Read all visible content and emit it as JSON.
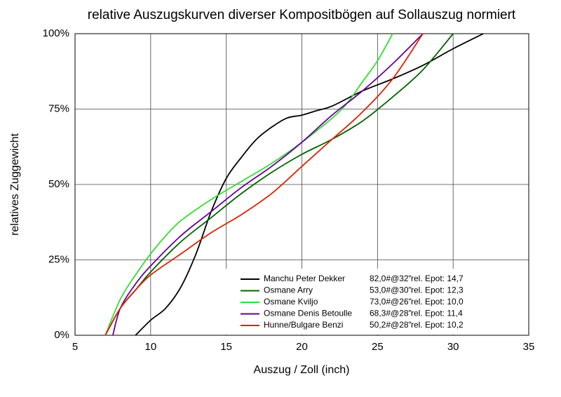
{
  "chart_data": {
    "type": "line",
    "title": "relative Auszugskurven diverser Kompositbögen auf Sollauszug normiert",
    "x_label": "Auszug / Zoll (inch)",
    "y_label": "relatives Zuggewicht",
    "xlim": [
      5,
      35
    ],
    "xticks": [
      5,
      10,
      15,
      20,
      25,
      30,
      35
    ],
    "ylim": [
      0,
      100
    ],
    "yticks": [
      {
        "value": 0,
        "label": "0%"
      },
      {
        "value": 25,
        "label": "25%"
      },
      {
        "value": 50,
        "label": "50%"
      },
      {
        "value": 75,
        "label": "75%"
      },
      {
        "value": 100,
        "label": "100%"
      }
    ],
    "grid": true,
    "legend": "lower right",
    "series": [
      {
        "name": "Manchu Peter Dekker",
        "draw_weight": "82,0#@32\"",
        "epot": "rel. Epot: 14,7",
        "color": "#000000",
        "x": [
          9,
          10,
          11,
          12,
          13,
          14,
          15,
          16,
          17,
          18,
          19,
          20,
          21,
          22,
          24,
          26,
          28,
          30,
          32
        ],
        "values": [
          0,
          5,
          9,
          16,
          27,
          41,
          52,
          59,
          65,
          69,
          72,
          73,
          74.5,
          76,
          81,
          85,
          89.5,
          95,
          100
        ]
      },
      {
        "name": "Osmane Arry",
        "draw_weight": "53,0#@30\"",
        "epot": "rel. Epot: 12,3",
        "color": "#006400",
        "x": [
          7,
          8,
          9,
          10,
          12,
          14,
          16,
          18,
          20,
          22,
          24,
          26,
          28,
          30
        ],
        "values": [
          0,
          9,
          15,
          21,
          31,
          39,
          47,
          54,
          60,
          65,
          71,
          79,
          88,
          100
        ]
      },
      {
        "name": "Osmane Kviljo",
        "draw_weight": "73,0#@26\"",
        "epot": "rel. Epot: 10,0",
        "color": "#33dd33",
        "x": [
          7,
          8,
          9,
          10,
          11,
          12,
          14,
          16,
          18,
          20,
          22,
          23,
          24,
          25,
          26
        ],
        "values": [
          0,
          12,
          20,
          27,
          33,
          38,
          45,
          51,
          57,
          64,
          72,
          77,
          84,
          91,
          100
        ]
      },
      {
        "name": "Osmane Denis Betoulle",
        "draw_weight": "68,3#@28\"",
        "epot": "rel. Epot: 11,4",
        "color": "#660099",
        "x": [
          7.5,
          8,
          9,
          10,
          12,
          14,
          16,
          18,
          20,
          22,
          24,
          26,
          28
        ],
        "values": [
          0,
          9,
          17,
          23,
          33,
          41,
          49,
          56,
          64,
          73,
          81,
          90,
          100
        ]
      },
      {
        "name": "Hunne/Bulgare Benzi",
        "draw_weight": "50,2#@28\"",
        "epot": "rel. Epot: 10,2",
        "color": "#dd2200",
        "x": [
          7,
          8,
          9,
          10,
          12,
          14,
          16,
          18,
          20,
          22,
          24,
          26,
          28
        ],
        "values": [
          0,
          9,
          15,
          20,
          27,
          34,
          40,
          47,
          56,
          65,
          74,
          85,
          100
        ]
      }
    ]
  }
}
